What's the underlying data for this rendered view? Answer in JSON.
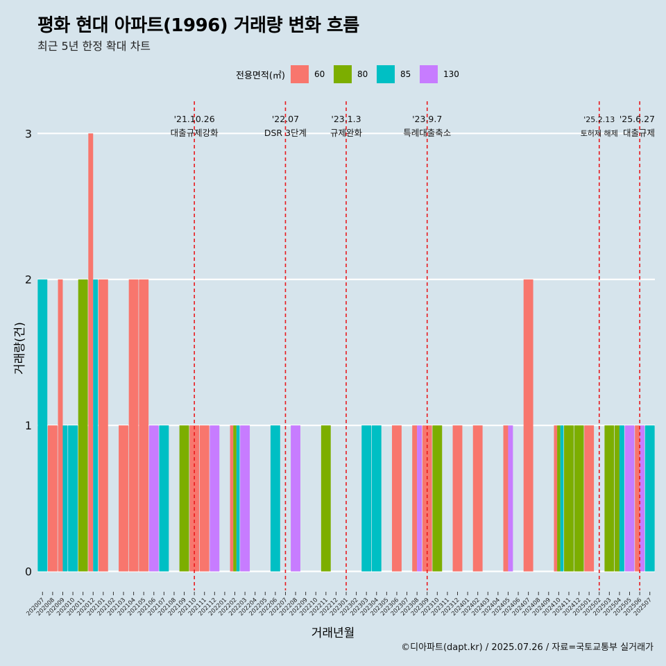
{
  "title": "평화 현대 아파트(1996) 거래량 변화 흐름",
  "subtitle": "최근 5년 한정 확대 차트",
  "caption": "©디아파트(dapt.kr) / 2025.07.26 / 자료=국토교통부 실거래가",
  "legend_title": "전용면적(㎡)",
  "series_colors": {
    "60": "#f8766d",
    "80": "#7cae00",
    "85": "#00bfc4",
    "130": "#c77cff"
  },
  "chart_data": {
    "type": "bar",
    "stacking": "dodge",
    "xlabel": "거래년월",
    "ylabel": "거래량(건)",
    "ylim": [
      -0.13,
      3.22
    ],
    "yticks": [
      0,
      1,
      2,
      3
    ],
    "grid": true,
    "legend_position": "top",
    "categories": [
      "202007",
      "202008",
      "202009",
      "202010",
      "202011",
      "202012",
      "202101",
      "202102",
      "202103",
      "202104",
      "202105",
      "202106",
      "202107",
      "202108",
      "202109",
      "202110",
      "202111",
      "202112",
      "202201",
      "202202",
      "202203",
      "202204",
      "202205",
      "202206",
      "202207",
      "202208",
      "202209",
      "202210",
      "202211",
      "202212",
      "202301",
      "202302",
      "202303",
      "202304",
      "202305",
      "202306",
      "202307",
      "202308",
      "202309",
      "202310",
      "202311",
      "202312",
      "202401",
      "202402",
      "202403",
      "202404",
      "202405",
      "202406",
      "202407",
      "202408",
      "202409",
      "202410",
      "202411",
      "202412",
      "202501",
      "202502",
      "202503",
      "202504",
      "202505",
      "202506",
      "202507"
    ],
    "series_names": [
      "60",
      "80",
      "85",
      "130"
    ],
    "data": {
      "202007": {
        "85": 2
      },
      "202008": {
        "60": 1
      },
      "202009": {
        "60": 2,
        "85": 1
      },
      "202010": {
        "85": 1
      },
      "202011": {
        "80": 2
      },
      "202012": {
        "60": 3,
        "85": 2
      },
      "202101": {
        "60": 2
      },
      "202103": {
        "60": 1
      },
      "202104": {
        "60": 2
      },
      "202105": {
        "60": 2
      },
      "202106": {
        "130": 1
      },
      "202107": {
        "85": 1
      },
      "202109": {
        "80": 1
      },
      "202110": {
        "60": 1
      },
      "202111": {
        "60": 1
      },
      "202112": {
        "130": 1
      },
      "202202": {
        "60": 1,
        "80": 1,
        "85": 1
      },
      "202203": {
        "130": 1
      },
      "202206": {
        "85": 1
      },
      "202208": {
        "130": 1
      },
      "202211": {
        "80": 1
      },
      "202303": {
        "85": 1
      },
      "202304": {
        "85": 1
      },
      "202306": {
        "60": 1
      },
      "202308": {
        "60": 1,
        "130": 1
      },
      "202309": {
        "60": 1
      },
      "202310": {
        "80": 1
      },
      "202312": {
        "60": 1
      },
      "202402": {
        "60": 1
      },
      "202405": {
        "60": 1,
        "130": 1
      },
      "202407": {
        "60": 2
      },
      "202410": {
        "60": 1,
        "80": 1,
        "85": 1
      },
      "202411": {
        "80": 1
      },
      "202412": {
        "80": 1
      },
      "202501": {
        "60": 1
      },
      "202503": {
        "80": 1
      },
      "202504": {
        "80": 1,
        "85": 1
      },
      "202505": {
        "130": 1
      },
      "202506": {
        "60": 1,
        "130": 1
      },
      "202507": {
        "85": 1
      }
    },
    "annotations": [
      {
        "x": "202110",
        "date": "'21.10.26",
        "label": "대출규제강화"
      },
      {
        "x": "202207",
        "date": "'22.07",
        "label": "DSR 3단계"
      },
      {
        "x": "202301",
        "date": "'23.1.3",
        "label": "규제완화"
      },
      {
        "x": "202309",
        "date": "'23.9.7",
        "label": "특례대출축소"
      },
      {
        "x": "202502",
        "date": "'25.2.13",
        "label": "토허제 해제"
      },
      {
        "x": "202506",
        "date": "'25.6.27",
        "label": "대출규제"
      }
    ]
  }
}
